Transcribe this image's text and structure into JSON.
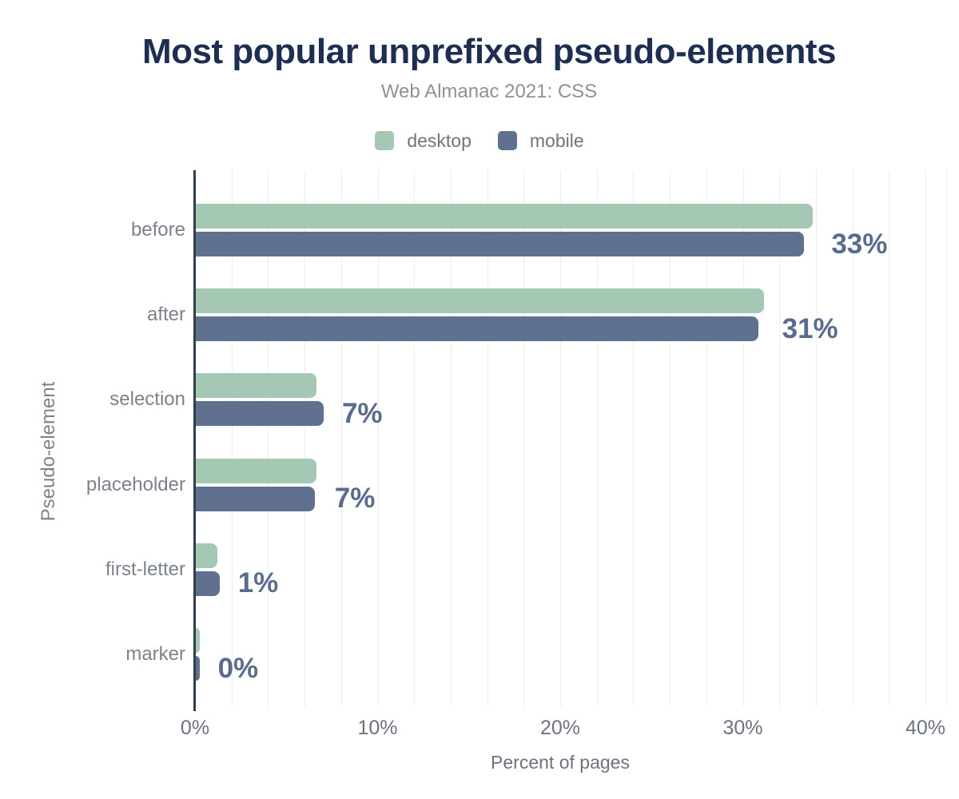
{
  "title": "Most popular unprefixed pseudo-elements",
  "subtitle": "Web Almanac 2021: CSS",
  "legend": [
    {
      "label": "desktop",
      "color": "#a5c8b5"
    },
    {
      "label": "mobile",
      "color": "#5f718f"
    }
  ],
  "chart_data": {
    "type": "bar",
    "orientation": "horizontal",
    "title": "Most popular unprefixed pseudo-elements",
    "subtitle": "Web Almanac 2021: CSS",
    "categories": [
      "before",
      "after",
      "selection",
      "placeholder",
      "first-letter",
      "marker"
    ],
    "series": [
      {
        "name": "desktop",
        "color": "#a5c8b5",
        "values": [
          33.8,
          31.1,
          6.6,
          6.6,
          1.2,
          0.2
        ]
      },
      {
        "name": "mobile",
        "color": "#5f718f",
        "values": [
          33.3,
          30.8,
          7.0,
          6.5,
          1.3,
          0.2
        ]
      }
    ],
    "value_labels": [
      "33%",
      "31%",
      "7%",
      "7%",
      "1%",
      "0%"
    ],
    "xlabel": "Percent of pages",
    "ylabel": "Pseudo-element",
    "x_ticks": [
      "0%",
      "10%",
      "20%",
      "30%",
      "40%"
    ],
    "x_tick_values": [
      0,
      10,
      20,
      30,
      40
    ],
    "xlim": [
      0,
      41.2
    ],
    "grid": true,
    "grid_interval_pct": 2,
    "legend_position": "top"
  },
  "colors": {
    "title": "#1d2e52",
    "subtitle": "#8d9399",
    "value_label": "#5a6c8e",
    "category_label": "#7b828b",
    "tick_label": "#6d737d",
    "gridline": "#ededed",
    "axis_line": "#343e4b",
    "background": "#ffffff"
  }
}
